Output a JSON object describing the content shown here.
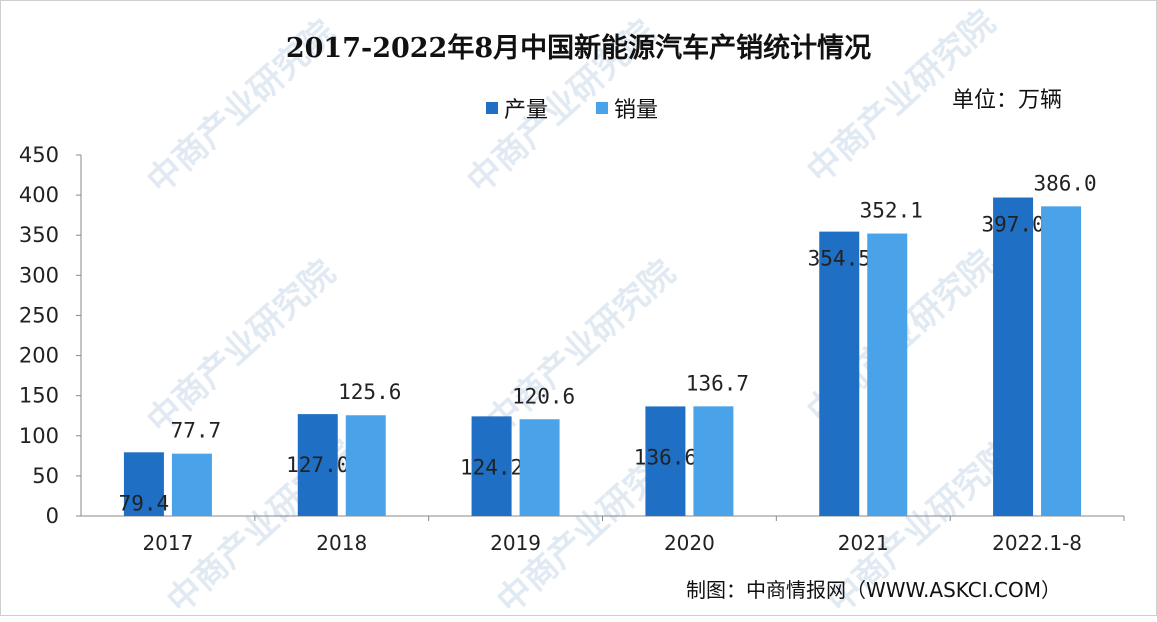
{
  "chart_data": {
    "type": "bar",
    "title": "2017-2022年8月中国新能源汽车产销统计情况",
    "unit_label": "单位：万辆",
    "categories": [
      "2017",
      "2018",
      "2019",
      "2020",
      "2021",
      "2022.1-8"
    ],
    "series": [
      {
        "name": "产量",
        "color": "#1f6fc5",
        "values": [
          79.4,
          127.0,
          124.2,
          136.6,
          354.5,
          397.0
        ],
        "labels": [
          "79.4",
          "127.0",
          "124.2",
          "136.6",
          "354.5",
          "397.0"
        ]
      },
      {
        "name": "销量",
        "color": "#4aa3e8",
        "values": [
          77.7,
          125.6,
          120.6,
          136.7,
          352.1,
          386.0
        ],
        "labels": [
          "77.7",
          "125.6",
          "120.6",
          "136.7",
          "352.1",
          "386.0"
        ]
      }
    ],
    "y_ticks": [
      "0",
      "50",
      "100",
      "150",
      "200",
      "250",
      "300",
      "350",
      "400",
      "450"
    ],
    "ylim": [
      0,
      450
    ],
    "grid": false,
    "legend_position": "top"
  },
  "source": "制图：中商情报网（WWW.ASKCI.COM）",
  "watermark": "中商产业研究院"
}
